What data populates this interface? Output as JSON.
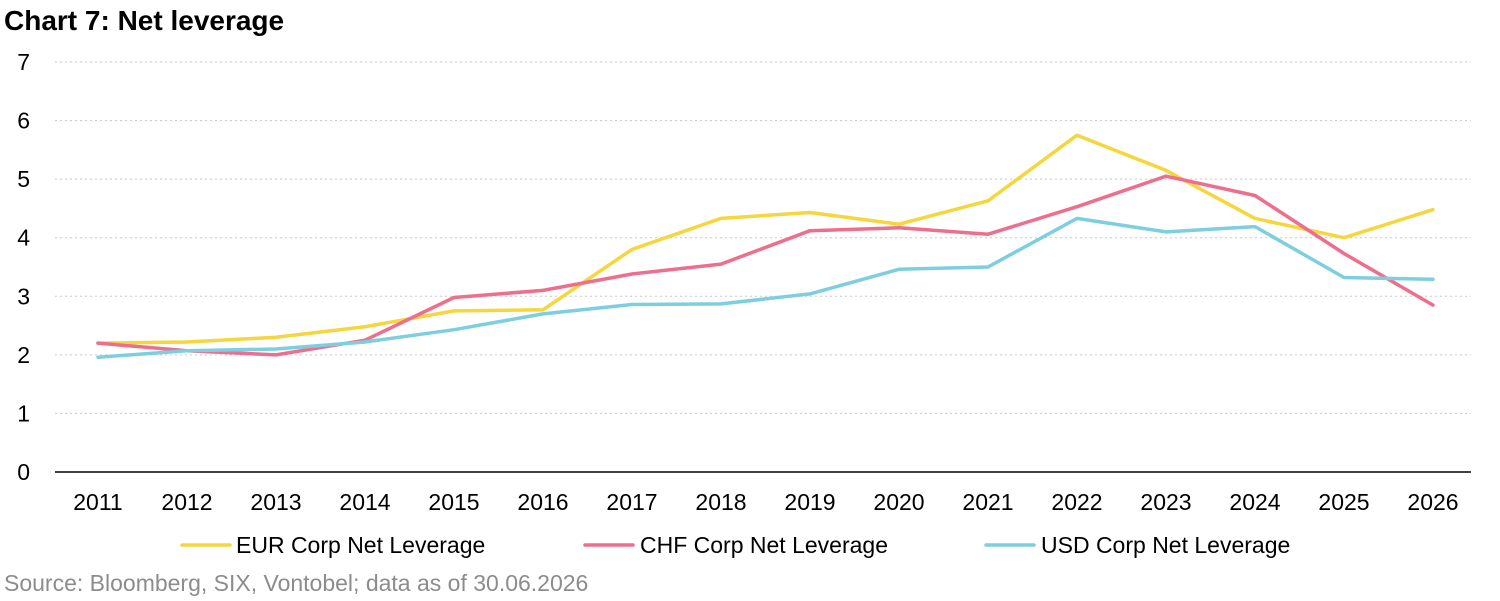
{
  "title": "Chart 7: Net leverage",
  "source": "Source: Bloomberg, SIX, Vontobel; data as of 30.06.2026",
  "chart_data": {
    "type": "line",
    "x": [
      "2011",
      "2012",
      "2013",
      "2014",
      "2015",
      "2016",
      "2017",
      "2018",
      "2019",
      "2020",
      "2021",
      "2022",
      "2023",
      "2024",
      "2025",
      "2026"
    ],
    "ylim": [
      0,
      7
    ],
    "yticks": [
      "0",
      "1",
      "2",
      "3",
      "4",
      "5",
      "6",
      "7"
    ],
    "grid": true,
    "legend_position": "bottom",
    "series": [
      {
        "name": "EUR Corp Net Leverage",
        "color": "#f5d63d",
        "values": [
          2.2,
          2.22,
          2.3,
          2.48,
          2.75,
          2.77,
          3.8,
          4.33,
          4.43,
          4.23,
          4.63,
          5.75,
          5.15,
          4.33,
          4.0,
          4.48
        ]
      },
      {
        "name": "CHF Corp Net Leverage",
        "color": "#ee6e8e",
        "values": [
          2.2,
          2.07,
          2.0,
          2.25,
          2.98,
          3.1,
          3.38,
          3.55,
          4.12,
          4.17,
          4.06,
          4.53,
          5.05,
          4.72,
          3.73,
          2.85
        ]
      },
      {
        "name": "USD Corp Net Leverage",
        "color": "#7dcfdf",
        "values": [
          1.96,
          2.07,
          2.1,
          2.22,
          2.43,
          2.7,
          2.86,
          2.87,
          3.04,
          3.46,
          3.5,
          4.33,
          4.1,
          4.19,
          3.32,
          3.29
        ]
      }
    ]
  }
}
